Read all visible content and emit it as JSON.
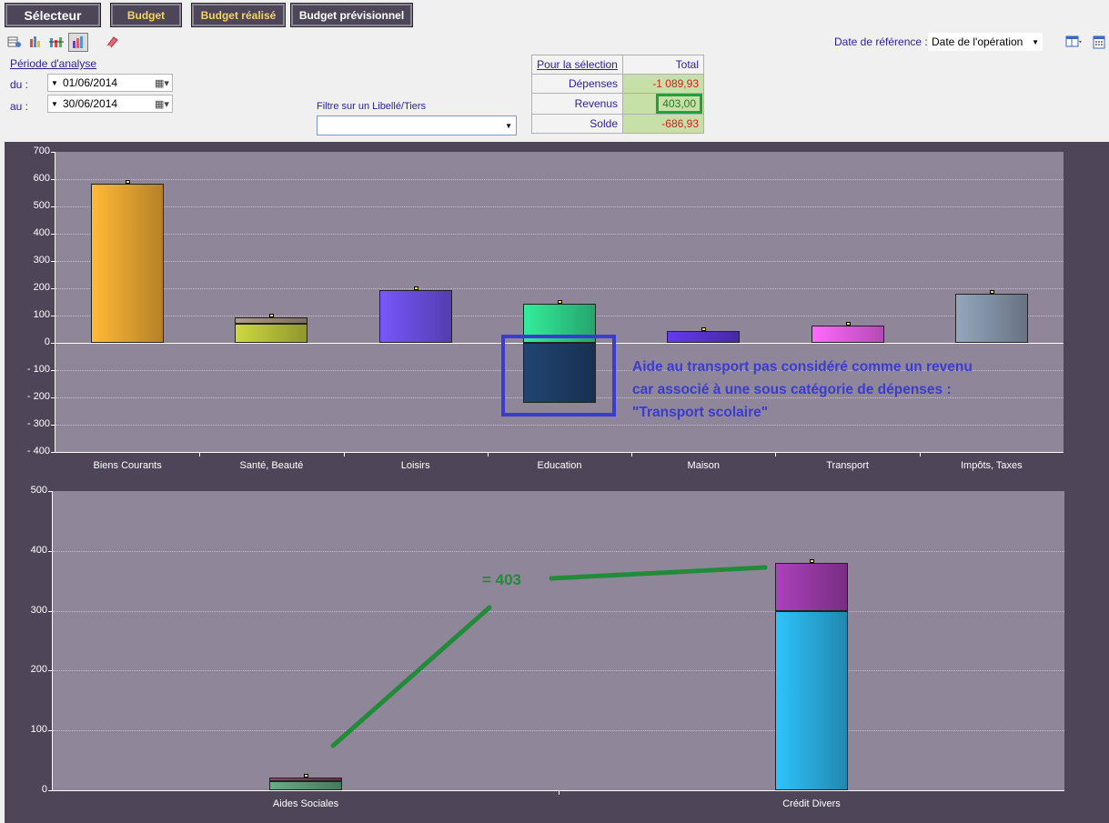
{
  "tabs": [
    {
      "label": "Sélecteur"
    },
    {
      "label": "Budget"
    },
    {
      "label": "Budget réalisé"
    },
    {
      "label": "Budget prévisionnel"
    }
  ],
  "toolbar": {
    "reference_label": "Date de référence :",
    "reference_value": "Date de l'opération",
    "icons": [
      "grid-settings-icon",
      "bar-series-icon",
      "line-series-icon",
      "bar-chart-icon",
      "eraser-icon",
      "layout-icon",
      "calendar-icon"
    ]
  },
  "period": {
    "title": "Période d'analyse",
    "from_label": "du :",
    "from_value": "01/06/2014",
    "to_label": "au :",
    "to_value": "30/06/2014"
  },
  "filter": {
    "label": "Filtre sur un Libellé/Tiers",
    "value": ""
  },
  "summary": {
    "header_label": "Pour la sélection",
    "header_total": "Total",
    "rows": [
      {
        "label": "Dépenses",
        "value": "-1 089,93"
      },
      {
        "label": "Revenus",
        "value": "403,00"
      },
      {
        "label": "Solde",
        "value": "-686,93"
      }
    ]
  },
  "annotations": {
    "blue_text_1": "Aide au transport pas considéré comme un revenu",
    "blue_text_2": "car associé à une sous catégorie de dépenses :",
    "blue_text_3": "\"Transport scolaire\"",
    "green_text": "= 403",
    "blue_color": "#3b3ccf",
    "green_color": "#228b3a"
  },
  "chart_data": [
    {
      "type": "bar",
      "categories": [
        "Biens Courants",
        "Santé, Beauté",
        "Loisirs",
        "Education",
        "Maison",
        "Transport",
        "Impôts, Taxes"
      ],
      "yticks": [
        "700",
        "600",
        "500",
        "400",
        "300",
        "200",
        "100",
        "0",
        "- 100",
        "- 200",
        "- 300",
        "- 400"
      ],
      "ylim": [
        -400,
        700
      ],
      "stacked": true,
      "bars": [
        {
          "category": "Biens Courants",
          "segments": [
            {
              "from": 0,
              "to": 585,
              "color": "#e8a632"
            }
          ]
        },
        {
          "category": "Santé, Beauté",
          "segments": [
            {
              "from": 0,
              "to": 70,
              "color": "#b8c23a"
            },
            {
              "from": 70,
              "to": 93,
              "color": "#a08a78"
            }
          ]
        },
        {
          "category": "Loisirs",
          "segments": [
            {
              "from": 0,
              "to": 193,
              "color": "#6a4ee0"
            }
          ]
        },
        {
          "category": "Education",
          "segments": [
            {
              "from": 0,
              "to": 143,
              "color": "#2ed38a"
            },
            {
              "from": -220,
              "to": 0,
              "color": "#1e3d66"
            }
          ]
        },
        {
          "category": "Maison",
          "segments": [
            {
              "from": 0,
              "to": 42,
              "color": "#5a34d4"
            }
          ]
        },
        {
          "category": "Transport",
          "segments": [
            {
              "from": 0,
              "to": 62,
              "color": "#e85ee8"
            }
          ]
        },
        {
          "category": "Impôts, Taxes",
          "segments": [
            {
              "from": 0,
              "to": 180,
              "color": "#8494a8"
            }
          ]
        }
      ],
      "grid": true
    },
    {
      "type": "bar",
      "categories": [
        "Aides Sociales",
        "Crédit Divers"
      ],
      "yticks": [
        "500",
        "400",
        "300",
        "200",
        "100",
        "0"
      ],
      "ylim": [
        0,
        500
      ],
      "stacked": true,
      "bars": [
        {
          "category": "Aides Sociales",
          "segments": [
            {
              "from": 0,
              "to": 15,
              "color": "#5e9a78"
            },
            {
              "from": 15,
              "to": 22,
              "color": "#8a3a5a"
            }
          ]
        },
        {
          "category": "Crédit Divers",
          "segments": [
            {
              "from": 0,
              "to": 300,
              "color": "#2aaee0"
            },
            {
              "from": 300,
              "to": 380,
              "color": "#9a3aa8"
            }
          ]
        }
      ],
      "grid": true
    }
  ]
}
